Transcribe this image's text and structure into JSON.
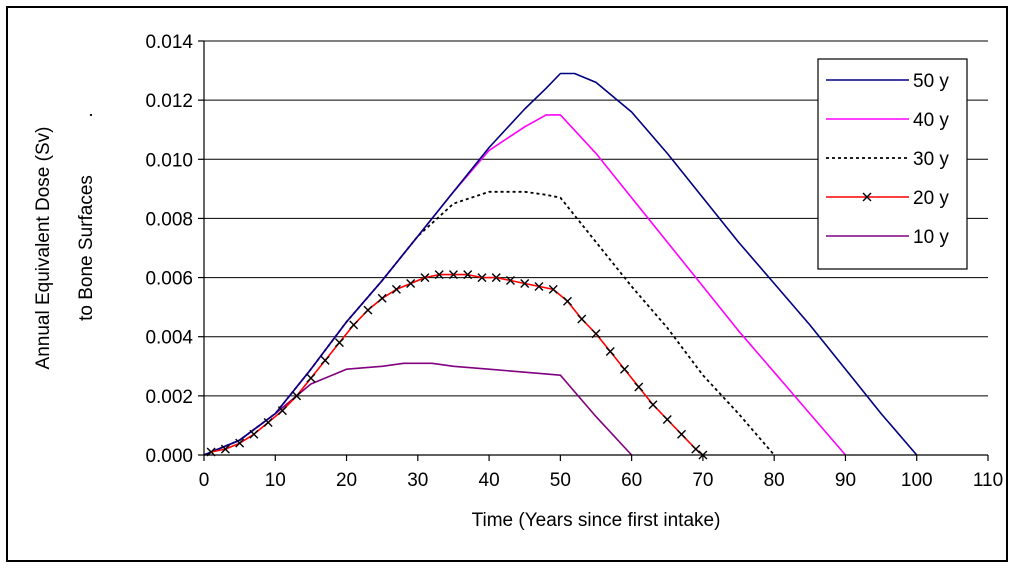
{
  "chart_data": {
    "type": "line",
    "title": "",
    "xlabel": "Time (Years since first intake)",
    "ylabel_line1": "Annual Equivalent Dose (Sv)",
    "ylabel_line2": "to Bone Surfaces",
    "ylabel_dot": ".",
    "xlim": [
      0,
      110
    ],
    "ylim": [
      0,
      0.014
    ],
    "xticks": [
      0,
      10,
      20,
      30,
      40,
      50,
      60,
      70,
      80,
      90,
      100,
      110
    ],
    "xtick_labels": [
      "0",
      "10",
      "20",
      "30",
      "40",
      "50",
      "60",
      "70",
      "80",
      "90",
      "100",
      "110"
    ],
    "yticks": [
      0,
      0.002,
      0.004,
      0.006,
      0.008,
      0.01,
      0.012,
      0.014
    ],
    "ytick_labels": [
      "0.000",
      "0.002",
      "0.004",
      "0.006",
      "0.008",
      "0.010",
      "0.012",
      "0.014"
    ],
    "grid": "horizontal",
    "legend_position": "top-right",
    "series": [
      {
        "name": "50 y",
        "color": "#000080",
        "style": "solid",
        "marker": "none",
        "x": [
          0,
          5,
          10,
          15,
          20,
          25,
          30,
          35,
          40,
          45,
          48,
          50,
          52,
          55,
          60,
          65,
          70,
          75,
          80,
          85,
          90,
          95,
          100
        ],
        "y": [
          0,
          0.0005,
          0.0014,
          0.0029,
          0.0045,
          0.0059,
          0.0074,
          0.0089,
          0.0104,
          0.0117,
          0.0124,
          0.0129,
          0.0129,
          0.0126,
          0.0116,
          0.0102,
          0.0087,
          0.0072,
          0.0058,
          0.0044,
          0.0029,
          0.0014,
          0
        ]
      },
      {
        "name": "40 y",
        "color": "#ff00ff",
        "style": "solid",
        "marker": "none",
        "x": [
          0,
          5,
          10,
          15,
          20,
          25,
          30,
          35,
          40,
          45,
          48,
          50,
          55,
          60,
          65,
          70,
          75,
          80,
          85,
          90
        ],
        "y": [
          0,
          0.0005,
          0.0014,
          0.0029,
          0.0045,
          0.0059,
          0.0074,
          0.0089,
          0.0103,
          0.0111,
          0.0115,
          0.0115,
          0.0102,
          0.0087,
          0.0072,
          0.0057,
          0.0042,
          0.0028,
          0.0014,
          0
        ]
      },
      {
        "name": "30 y",
        "color": "#000000",
        "style": "dotted",
        "marker": "none",
        "x": [
          0,
          5,
          10,
          15,
          20,
          25,
          30,
          35,
          40,
          45,
          48,
          50,
          55,
          60,
          65,
          70,
          75,
          80
        ],
        "y": [
          0,
          0.0005,
          0.0014,
          0.0029,
          0.0045,
          0.0059,
          0.0074,
          0.0085,
          0.0089,
          0.0089,
          0.0088,
          0.0087,
          0.0072,
          0.0057,
          0.0043,
          0.0027,
          0.0014,
          0
        ]
      },
      {
        "name": "20 y",
        "color": "#ff0000",
        "style": "solid",
        "marker": "x",
        "x": [
          1,
          3,
          5,
          7,
          9,
          11,
          13,
          15,
          17,
          19,
          21,
          23,
          25,
          27,
          29,
          31,
          33,
          35,
          37,
          39,
          41,
          43,
          45,
          47,
          49,
          51,
          53,
          55,
          57,
          59,
          61,
          63,
          65,
          67,
          69,
          70
        ],
        "y": [
          0.0001,
          0.0002,
          0.0004,
          0.0007,
          0.0011,
          0.0015,
          0.002,
          0.0026,
          0.0032,
          0.0038,
          0.0044,
          0.0049,
          0.0053,
          0.0056,
          0.0058,
          0.006,
          0.0061,
          0.0061,
          0.0061,
          0.006,
          0.006,
          0.0059,
          0.0058,
          0.0057,
          0.0056,
          0.0052,
          0.0046,
          0.0041,
          0.0035,
          0.0029,
          0.0023,
          0.0017,
          0.0012,
          0.0007,
          0.0002,
          0
        ]
      },
      {
        "name": "10 y",
        "color": "#800080",
        "style": "solid",
        "marker": "none",
        "x": [
          0,
          5,
          10,
          15,
          20,
          25,
          28,
          30,
          32,
          35,
          40,
          45,
          50,
          55,
          60
        ],
        "y": [
          0,
          0.0005,
          0.0014,
          0.0024,
          0.0029,
          0.003,
          0.0031,
          0.0031,
          0.0031,
          0.003,
          0.0029,
          0.0028,
          0.0027,
          0.0013,
          0
        ]
      }
    ]
  }
}
